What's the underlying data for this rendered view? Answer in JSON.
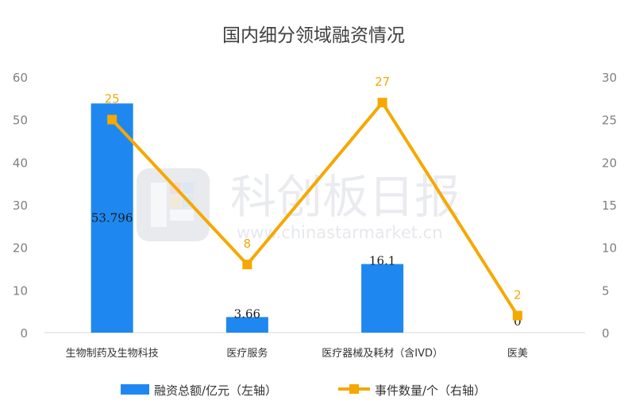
{
  "watermark": {
    "name": "科创板日报",
    "url": "www.chinastarmarket.cn"
  },
  "chart_data": {
    "type": "bar",
    "title": "国内细分领域融资情况",
    "categories": [
      "生物制药及生物科技",
      "医疗服务",
      "医疗器械及耗材（含IVD）",
      "医美"
    ],
    "series": [
      {
        "name": "融资总额/亿元（左轴）",
        "type": "bar",
        "axis": "left",
        "color": "#1e88f0",
        "values": [
          53.796,
          3.66,
          16.1,
          0
        ],
        "labels": [
          "53.796",
          "3.66",
          "16.1",
          "0"
        ]
      },
      {
        "name": "事件数量/个（右轴）",
        "type": "line",
        "axis": "right",
        "color": "#f5a800",
        "values": [
          25,
          8,
          27,
          2
        ],
        "labels": [
          "25",
          "8",
          "27",
          "2"
        ]
      }
    ],
    "y_left": {
      "range": [
        0,
        60
      ],
      "ticks": [
        "0",
        "10",
        "20",
        "30",
        "40",
        "50",
        "60"
      ]
    },
    "y_right": {
      "range": [
        0,
        30
      ],
      "ticks": [
        "0",
        "5",
        "10",
        "15",
        "20",
        "25",
        "30"
      ]
    },
    "grid": false,
    "legend": "bottom"
  }
}
